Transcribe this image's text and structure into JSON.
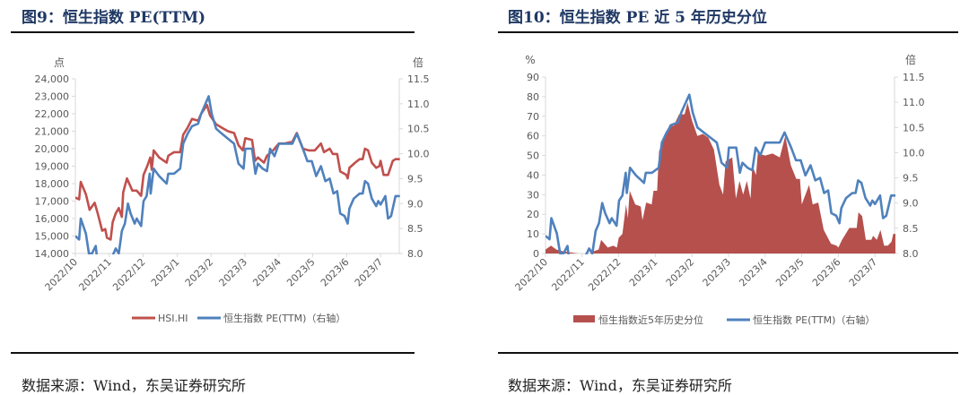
{
  "left": {
    "title": "图9：恒生指数 PE(TTM)",
    "source": "数据来源：Wind，东吴证券研究所"
  },
  "right": {
    "title": "图10：恒生指数 PE 近 5 年历史分位",
    "source": "数据来源：Wind，东吴证券研究所"
  },
  "chart_data": [
    {
      "type": "line",
      "title": "恒生指数 PE(TTM)",
      "x_unit": "months since 2022/10",
      "x_ticks": [
        "2022/10",
        "2022/11",
        "2022/12",
        "2023/1",
        "2023/2",
        "2023/3",
        "2023/4",
        "2023/5",
        "2023/6",
        "2023/7"
      ],
      "left_unit": "点",
      "right_unit": "倍",
      "ylim_left": [
        14000,
        24000
      ],
      "yticks_left": [
        "14,000",
        "15,000",
        "16,000",
        "17,000",
        "18,000",
        "19,000",
        "20,000",
        "21,000",
        "22,000",
        "23,000",
        "24,000"
      ],
      "ylim_right": [
        8.0,
        11.5
      ],
      "yticks_right": [
        "8.0",
        "8.5",
        "9.0",
        "9.5",
        "10.0",
        "10.5",
        "11.0",
        "11.5"
      ],
      "series": [
        {
          "name": "HSI.HI",
          "axis": "left",
          "color": "#c0504d",
          "points": [
            [
              0,
              17200
            ],
            [
              0.11,
              17100
            ],
            [
              0.16,
              18100
            ],
            [
              0.31,
              17400
            ],
            [
              0.42,
              16500
            ],
            [
              0.57,
              16900
            ],
            [
              0.66,
              16300
            ],
            [
              0.79,
              15300
            ],
            [
              0.88,
              15400
            ],
            [
              0.93,
              14900
            ],
            [
              1.04,
              14800
            ],
            [
              1.1,
              15800
            ],
            [
              1.19,
              16300
            ],
            [
              1.28,
              16600
            ],
            [
              1.37,
              16100
            ],
            [
              1.41,
              17500
            ],
            [
              1.52,
              18300
            ],
            [
              1.68,
              17600
            ],
            [
              1.81,
              17600
            ],
            [
              1.94,
              17300
            ],
            [
              2.01,
              18500
            ],
            [
              2.12,
              19000
            ],
            [
              2.21,
              19500
            ],
            [
              2.25,
              18800
            ],
            [
              2.31,
              19900
            ],
            [
              2.47,
              19500
            ],
            [
              2.69,
              19200
            ],
            [
              2.74,
              19600
            ],
            [
              2.91,
              19800
            ],
            [
              3.09,
              19800
            ],
            [
              3.18,
              20800
            ],
            [
              3.31,
              21200
            ],
            [
              3.44,
              21700
            ],
            [
              3.62,
              21600
            ],
            [
              3.71,
              22000
            ],
            [
              3.88,
              22500
            ],
            [
              3.97,
              21900
            ],
            [
              4.15,
              21400
            ],
            [
              4.32,
              21200
            ],
            [
              4.5,
              21000
            ],
            [
              4.68,
              20900
            ],
            [
              4.81,
              20200
            ],
            [
              4.94,
              19900
            ],
            [
              5.01,
              20600
            ],
            [
              5.21,
              20500
            ],
            [
              5.3,
              19300
            ],
            [
              5.38,
              19500
            ],
            [
              5.56,
              19200
            ],
            [
              5.65,
              19600
            ],
            [
              5.83,
              19900
            ],
            [
              6.0,
              20300
            ],
            [
              6.18,
              20300
            ],
            [
              6.4,
              20400
            ],
            [
              6.53,
              20900
            ],
            [
              6.71,
              20000
            ],
            [
              6.88,
              19900
            ],
            [
              7.06,
              19900
            ],
            [
              7.24,
              20300
            ],
            [
              7.33,
              19800
            ],
            [
              7.5,
              20000
            ],
            [
              7.59,
              19700
            ],
            [
              7.72,
              19700
            ],
            [
              7.81,
              18700
            ],
            [
              7.99,
              18500
            ],
            [
              8.03,
              18300
            ],
            [
              8.08,
              18900
            ],
            [
              8.25,
              19200
            ],
            [
              8.38,
              19400
            ],
            [
              8.47,
              19400
            ],
            [
              8.54,
              20000
            ],
            [
              8.63,
              19900
            ],
            [
              8.74,
              19200
            ],
            [
              8.87,
              18900
            ],
            [
              8.96,
              19000
            ],
            [
              9.0,
              19300
            ],
            [
              9.09,
              18500
            ],
            [
              9.22,
              18500
            ],
            [
              9.36,
              19300
            ],
            [
              9.44,
              19400
            ],
            [
              9.57,
              19400
            ]
          ]
        },
        {
          "name": "恒生指数 PE(TTM)（右轴）",
          "axis": "right",
          "color": "#4f81bd",
          "points": [
            [
              0,
              8.35
            ],
            [
              0.11,
              8.28
            ],
            [
              0.16,
              8.7
            ],
            [
              0.31,
              8.4
            ],
            [
              0.4,
              8.0
            ],
            [
              0.49,
              8.0
            ],
            [
              0.6,
              8.15
            ],
            [
              0.64,
              7.9
            ],
            [
              1.06,
              7.9
            ],
            [
              1.19,
              8.1
            ],
            [
              1.28,
              8.0
            ],
            [
              1.37,
              8.45
            ],
            [
              1.46,
              8.6
            ],
            [
              1.55,
              9.0
            ],
            [
              1.63,
              8.8
            ],
            [
              1.75,
              8.6
            ],
            [
              1.81,
              8.7
            ],
            [
              1.94,
              8.55
            ],
            [
              2.01,
              9.05
            ],
            [
              2.1,
              9.15
            ],
            [
              2.19,
              9.6
            ],
            [
              2.22,
              9.2
            ],
            [
              2.31,
              9.7
            ],
            [
              2.47,
              9.55
            ],
            [
              2.69,
              9.4
            ],
            [
              2.74,
              9.6
            ],
            [
              2.91,
              9.6
            ],
            [
              3.09,
              9.7
            ],
            [
              3.18,
              10.2
            ],
            [
              3.31,
              10.4
            ],
            [
              3.44,
              10.55
            ],
            [
              3.62,
              10.6
            ],
            [
              3.71,
              10.8
            ],
            [
              3.93,
              11.15
            ],
            [
              4.02,
              10.8
            ],
            [
              4.15,
              10.5
            ],
            [
              4.32,
              10.4
            ],
            [
              4.5,
              10.3
            ],
            [
              4.68,
              10.2
            ],
            [
              4.81,
              9.8
            ],
            [
              4.96,
              9.7
            ],
            [
              5.01,
              10.1
            ],
            [
              5.21,
              10.1
            ],
            [
              5.31,
              9.6
            ],
            [
              5.38,
              9.8
            ],
            [
              5.52,
              9.7
            ],
            [
              5.65,
              9.65
            ],
            [
              5.74,
              10.1
            ],
            [
              5.87,
              9.95
            ],
            [
              6.0,
              10.2
            ],
            [
              6.18,
              10.2
            ],
            [
              6.4,
              10.2
            ],
            [
              6.53,
              10.4
            ],
            [
              6.71,
              10.1
            ],
            [
              6.84,
              9.85
            ],
            [
              6.97,
              9.85
            ],
            [
              7.1,
              9.55
            ],
            [
              7.24,
              9.75
            ],
            [
              7.37,
              9.45
            ],
            [
              7.5,
              9.5
            ],
            [
              7.61,
              9.2
            ],
            [
              7.72,
              9.25
            ],
            [
              7.81,
              8.8
            ],
            [
              7.94,
              8.75
            ],
            [
              8.03,
              8.6
            ],
            [
              8.08,
              8.9
            ],
            [
              8.21,
              9.1
            ],
            [
              8.38,
              9.2
            ],
            [
              8.47,
              9.2
            ],
            [
              8.54,
              9.45
            ],
            [
              8.63,
              9.4
            ],
            [
              8.74,
              9.1
            ],
            [
              8.87,
              8.95
            ],
            [
              8.93,
              9.05
            ],
            [
              9.0,
              8.98
            ],
            [
              9.14,
              9.15
            ],
            [
              9.22,
              8.7
            ],
            [
              9.31,
              8.75
            ],
            [
              9.44,
              9.15
            ],
            [
              9.57,
              9.15
            ]
          ]
        }
      ],
      "legend": [
        "HSI.HI",
        "恒生指数 PE(TTM)（右轴）"
      ],
      "legend_position": "bottom"
    },
    {
      "type": "area",
      "title": "恒生指数 PE 近 5 年历史分位",
      "x_unit": "months since 2022/10",
      "x_ticks": [
        "2022/10",
        "2022/11",
        "2022/12",
        "2023/1",
        "2023/2",
        "2023/3",
        "2023/4",
        "2023/5",
        "2023/6",
        "2023/7"
      ],
      "left_unit": "%",
      "right_unit": "倍",
      "ylim_left": [
        0,
        90
      ],
      "yticks_left": [
        "0",
        "10",
        "20",
        "30",
        "40",
        "50",
        "60",
        "70",
        "80",
        "90"
      ],
      "ylim_right": [
        8.0,
        11.5
      ],
      "yticks_right": [
        "8.0",
        "8.5",
        "9.0",
        "9.5",
        "10.0",
        "10.5",
        "11.0",
        "11.5"
      ],
      "series": [
        {
          "name": "恒生指数近5年历史分位",
          "axis": "left",
          "kind": "area",
          "color": "#b5504d",
          "points": [
            [
              0,
              2
            ],
            [
              0.15,
              4
            ],
            [
              0.3,
              2
            ],
            [
              0.5,
              1
            ],
            [
              0.7,
              0.5
            ],
            [
              0.9,
              0
            ],
            [
              1.2,
              0
            ],
            [
              1.3,
              1
            ],
            [
              1.45,
              2
            ],
            [
              1.52,
              7
            ],
            [
              1.7,
              3
            ],
            [
              1.85,
              4
            ],
            [
              1.95,
              3
            ],
            [
              2.0,
              8
            ],
            [
              2.1,
              10
            ],
            [
              2.2,
              25
            ],
            [
              2.25,
              18
            ],
            [
              2.3,
              32
            ],
            [
              2.45,
              25
            ],
            [
              2.6,
              24
            ],
            [
              2.65,
              17
            ],
            [
              2.75,
              26
            ],
            [
              2.9,
              25
            ],
            [
              2.95,
              32
            ],
            [
              3.05,
              32
            ],
            [
              3.1,
              52
            ],
            [
              3.25,
              60
            ],
            [
              3.4,
              66
            ],
            [
              3.5,
              65
            ],
            [
              3.65,
              71
            ],
            [
              3.8,
              71
            ],
            [
              3.88,
              77
            ],
            [
              4.0,
              68
            ],
            [
              4.15,
              60
            ],
            [
              4.3,
              61
            ],
            [
              4.45,
              59
            ],
            [
              4.6,
              53
            ],
            [
              4.75,
              35
            ],
            [
              4.85,
              30
            ],
            [
              4.92,
              47
            ],
            [
              5.1,
              49
            ],
            [
              5.2,
              28
            ],
            [
              5.3,
              37
            ],
            [
              5.4,
              30
            ],
            [
              5.5,
              37
            ],
            [
              5.6,
              28
            ],
            [
              5.65,
              45
            ],
            [
              5.75,
              40
            ],
            [
              5.8,
              51
            ],
            [
              6.0,
              50
            ],
            [
              6.2,
              51
            ],
            [
              6.4,
              49
            ],
            [
              6.55,
              60
            ],
            [
              6.7,
              45
            ],
            [
              6.85,
              38
            ],
            [
              6.95,
              38
            ],
            [
              7.0,
              25
            ],
            [
              7.2,
              35
            ],
            [
              7.3,
              25
            ],
            [
              7.45,
              26
            ],
            [
              7.6,
              12
            ],
            [
              7.8,
              5
            ],
            [
              7.95,
              4
            ],
            [
              8.0,
              3
            ],
            [
              8.1,
              7
            ],
            [
              8.3,
              13
            ],
            [
              8.5,
              13
            ],
            [
              8.55,
              21
            ],
            [
              8.65,
              19
            ],
            [
              8.75,
              7
            ],
            [
              8.9,
              7
            ],
            [
              8.95,
              9
            ],
            [
              9.05,
              7
            ],
            [
              9.15,
              12
            ],
            [
              9.25,
              4
            ],
            [
              9.35,
              4
            ],
            [
              9.45,
              6
            ],
            [
              9.5,
              10
            ],
            [
              9.57,
              10
            ]
          ]
        },
        {
          "name": "恒生指数 PE(TTM)（右轴）",
          "axis": "right",
          "kind": "line",
          "color": "#4f81bd",
          "same_as": "chart 1 PE series"
        }
      ],
      "legend": [
        "恒生指数近5年历史分位",
        "恒生指数 PE(TTM)（右轴）"
      ],
      "legend_position": "bottom"
    }
  ]
}
